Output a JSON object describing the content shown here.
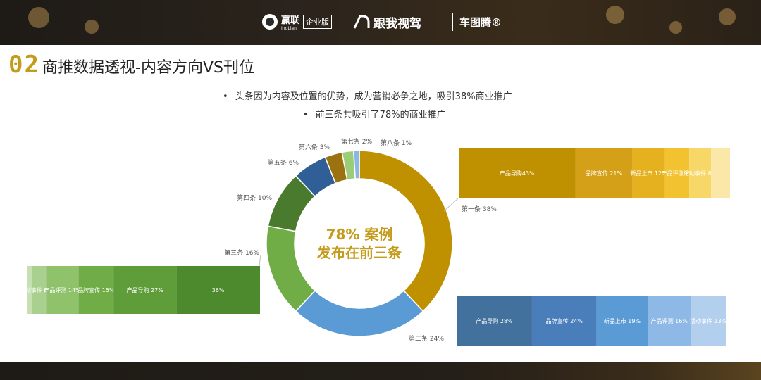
{
  "header": {
    "brand1_name": "赢联",
    "brand1_sub": "InqLian",
    "brand1_badge": "企业版",
    "brand2_name": "跟我视驾",
    "brand3_name": "车图腾®",
    "section_number": "02",
    "title": "商推数据透视-内容方向VS刊位"
  },
  "bullets": [
    "头条因为内容及位置的优势，成为营销必争之地，吸引38%商业推广",
    "前三条共吸引了78%的商业推广"
  ],
  "colors": {
    "gold": "#c59b1b",
    "blue": "#5b9bd5",
    "green": "#70ad47"
  },
  "chart_data": [
    {
      "type": "pie",
      "title": "",
      "center_text": [
        "78% 案例",
        "发布在前三条"
      ],
      "slices": [
        {
          "label": "第一条 38%",
          "value": 38,
          "color": "#bf9000"
        },
        {
          "label": "第二条 24%",
          "value": 24,
          "color": "#5b9bd5"
        },
        {
          "label": "第三条 16%",
          "value": 16,
          "color": "#70ad47"
        },
        {
          "label": "第四条 10%",
          "value": 10,
          "color": "#4a7a2e"
        },
        {
          "label": "第五条 6%",
          "value": 6,
          "color": "#2f5f96"
        },
        {
          "label": "第六条 3%",
          "value": 3,
          "color": "#9c7210"
        },
        {
          "label": "第七条 2%",
          "value": 2,
          "color": "#9ccc78"
        },
        {
          "label": "第八条 1%",
          "value": 1,
          "color": "#8ab8e4"
        }
      ]
    },
    {
      "type": "bar",
      "stacked": true,
      "name": "第一条 38%",
      "segments": [
        {
          "label": "产品导购43%",
          "value": 43,
          "color": "#bf9000"
        },
        {
          "label": "品牌宣传 21%",
          "value": 21,
          "color": "#d4a017"
        },
        {
          "label": "新品上市 12%",
          "value": 12,
          "color": "#e6b11f"
        },
        {
          "label": "产品评测9%",
          "value": 9,
          "color": "#f2c230"
        },
        {
          "label": "活动事件 8%",
          "value": 8,
          "color": "#f7d768"
        },
        {
          "label": "",
          "value": 7,
          "color": "#fbe7a8"
        }
      ]
    },
    {
      "type": "bar",
      "stacked": true,
      "name": "第二条 24%",
      "segments": [
        {
          "label": "产品导购 28%",
          "value": 28,
          "color": "#41719c"
        },
        {
          "label": "品牌宣传 24%",
          "value": 24,
          "color": "#4a7ebb"
        },
        {
          "label": "新品上市 19%",
          "value": 19,
          "color": "#5b9bd5"
        },
        {
          "label": "产品评测 16%",
          "value": 16,
          "color": "#8eb8e5"
        },
        {
          "label": "活动事件 13%",
          "value": 13,
          "color": "#b3cfee"
        }
      ]
    },
    {
      "type": "bar",
      "stacked": true,
      "name": "第三条 16%",
      "segments": [
        {
          "label": "36%",
          "value": 36,
          "color": "#4d8a2e"
        },
        {
          "label": "产品导购 27%",
          "value": 27,
          "color": "#5e9d3a"
        },
        {
          "label": "品牌宣传 15%",
          "value": 15,
          "color": "#70ad47"
        },
        {
          "label": "产品评测 14%",
          "value": 14,
          "color": "#8fc26a"
        },
        {
          "label": "动事件 6%",
          "value": 6,
          "color": "#a9d08e"
        },
        {
          "label": "",
          "value": 2,
          "color": "#c6e0b4"
        }
      ]
    }
  ]
}
